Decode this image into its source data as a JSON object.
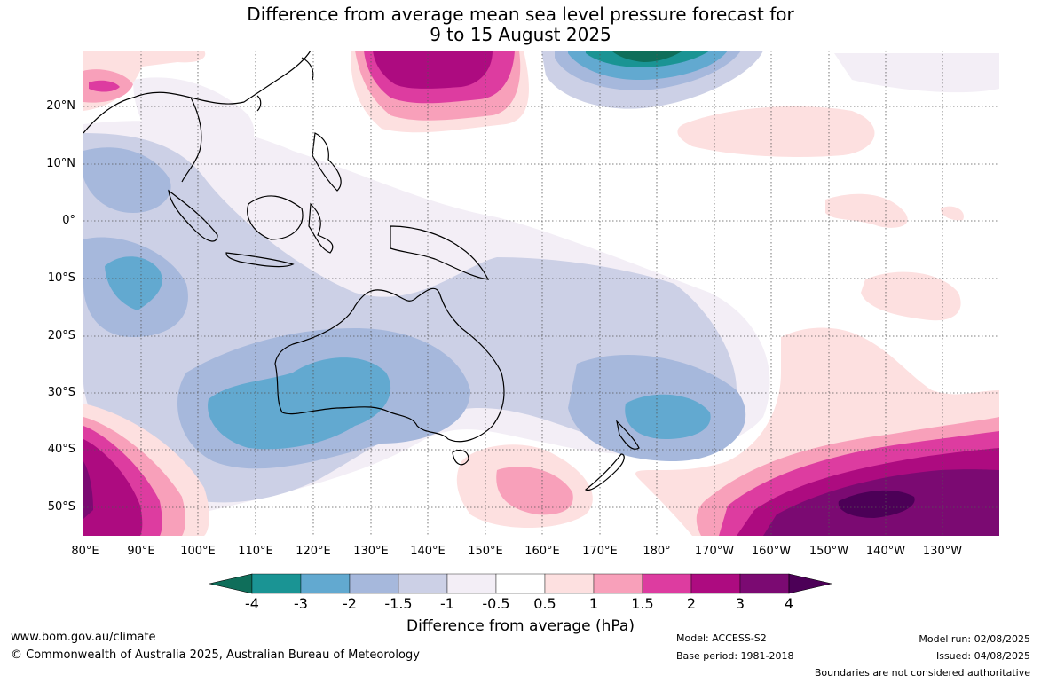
{
  "map": {
    "title_line1": "Difference from average mean sea level pressure forecast for",
    "title_line2": "9 to 15 August 2025",
    "lat_labels": [
      "20°N",
      "10°N",
      "0°",
      "10°S",
      "20°S",
      "30°S",
      "40°S",
      "50°S"
    ],
    "lon_labels": [
      "80°E",
      "90°E",
      "100°E",
      "110°E",
      "120°E",
      "130°E",
      "140°E",
      "150°E",
      "160°E",
      "170°E",
      "180°",
      "170°W",
      "160°W",
      "150°W",
      "140°W",
      "130°W"
    ]
  },
  "colorbar": {
    "title": "Difference from average (hPa)",
    "ticks": [
      "-4",
      "-3",
      "-2",
      "-1.5",
      "-1",
      "-0.5",
      "0.5",
      "1",
      "1.5",
      "2",
      "3",
      "4"
    ],
    "colors": [
      "#0f6e5a",
      "#1a9494",
      "#62a9d0",
      "#a6b8dc",
      "#ccd0e6",
      "#f3eef6",
      "#ffffff",
      "#fde0e0",
      "#f8a0ba",
      "#dd3ca0",
      "#ad0b80",
      "#7b0a72",
      "#4c0057"
    ]
  },
  "footer": {
    "website": "www.bom.gov.au/climate",
    "copyright": "© Commonwealth of Australia 2025, Australian Bureau of Meteorology",
    "model": "Model: ACCESS-S2",
    "base_period": "Base period: 1981-2018",
    "model_run": "Model run: 02/08/2025",
    "issued": "Issued: 04/08/2025",
    "disclaimer": "Boundaries are not considered authoritative"
  }
}
